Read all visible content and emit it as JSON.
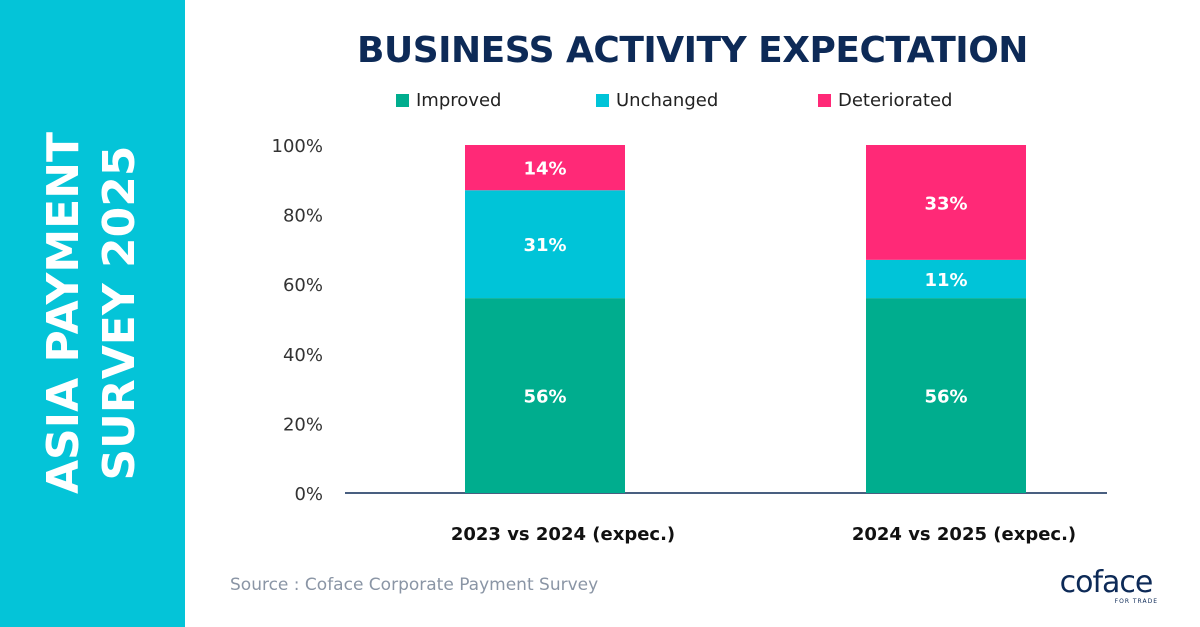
{
  "sidebar": {
    "line1": "ASIA PAYMENT",
    "line2": "SURVEY 2025"
  },
  "chart_data": {
    "type": "bar",
    "stacked": true,
    "title": "BUSINESS ACTIVITY EXPECTATION",
    "categories": [
      "2023 vs 2024 (expec.)",
      "2024 vs 2025 (expec.)"
    ],
    "series": [
      {
        "name": "Improved",
        "values": [
          56,
          56
        ],
        "labels": [
          "56%",
          "56%"
        ],
        "color": "#00ad8e"
      },
      {
        "name": "Unchanged",
        "values": [
          31,
          11
        ],
        "labels": [
          "31%",
          "11%"
        ],
        "color": "#00c4d8"
      },
      {
        "name": "Deteriorated",
        "values": [
          14,
          33
        ],
        "labels": [
          "14%",
          "33%"
        ],
        "color": "#ff2977"
      }
    ],
    "yticks": [
      "0%",
      "20%",
      "40%",
      "60%",
      "80%",
      "100%"
    ],
    "ylim": [
      0,
      100
    ],
    "xlabel": "",
    "ylabel": "",
    "legend_position": "top"
  },
  "source": "Source : Coface Corporate Payment Survey",
  "logo": {
    "name": "coface",
    "tagline": "FOR TRADE"
  }
}
